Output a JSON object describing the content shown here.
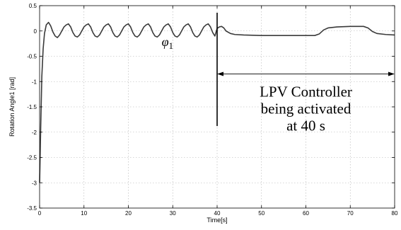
{
  "chart_data": {
    "type": "line",
    "title": "",
    "xlabel": "Time[s]",
    "ylabel": "Rotation Angle1 [rad]",
    "xlim": [
      0,
      80
    ],
    "ylim": [
      -3.5,
      0.5
    ],
    "x_ticks": [
      0,
      10,
      20,
      30,
      40,
      50,
      60,
      70,
      80
    ],
    "y_ticks": [
      -3.5,
      -3,
      -2.5,
      -2,
      -1.5,
      -1,
      -0.5,
      0,
      0.5
    ],
    "x_tick_labels": [
      "0",
      "10",
      "20",
      "30",
      "40",
      "50",
      "60",
      "70",
      "80"
    ],
    "y_tick_labels": [
      "-3.5",
      "-3",
      "-2.5",
      "-2",
      "-1.5",
      "-1",
      "-0.5",
      "0",
      "0.5"
    ],
    "grid": true,
    "series": [
      {
        "name": "",
        "color": "#3a3a3a",
        "x": [
          0,
          0.25,
          0.5,
          0.8,
          1.1,
          1.5,
          2.0,
          2.5,
          3.0,
          3.5,
          4.0,
          4.5,
          5.0,
          5.5,
          6.0,
          6.5,
          7.0,
          7.5,
          8.0,
          8.5,
          9.0,
          9.5,
          10.0,
          10.5,
          11.0,
          11.5,
          12.0,
          12.5,
          13.0,
          13.5,
          14.0,
          14.5,
          15.0,
          15.5,
          16.0,
          16.5,
          17.0,
          17.5,
          18.0,
          18.5,
          19.0,
          19.5,
          20.0,
          20.5,
          21.0,
          21.5,
          22.0,
          22.5,
          23.0,
          23.5,
          24.0,
          24.5,
          25.0,
          25.5,
          26.0,
          26.5,
          27.0,
          27.5,
          28.0,
          28.5,
          29.0,
          29.5,
          30.0,
          30.5,
          31.0,
          31.5,
          32.0,
          32.5,
          33.0,
          33.5,
          34.0,
          34.5,
          35.0,
          35.5,
          36.0,
          36.5,
          37.0,
          37.5,
          38.0,
          38.5,
          39.0,
          39.5,
          40.0,
          40.5,
          41.0,
          41.5,
          42.0,
          43.0,
          44.0,
          46.0,
          50.0,
          55.0,
          60.0,
          62.0,
          63.0,
          64.0,
          65.0,
          67.0,
          70.0,
          73.0,
          74.0,
          75.0,
          76.0,
          78.0,
          80.0
        ],
        "y": [
          -3.0,
          -1.9,
          -0.9,
          -0.35,
          -0.05,
          0.12,
          0.17,
          0.1,
          -0.02,
          -0.1,
          -0.13,
          -0.08,
          0.0,
          0.08,
          0.12,
          0.14,
          0.08,
          -0.03,
          -0.1,
          -0.12,
          -0.08,
          0.0,
          0.08,
          0.12,
          0.14,
          0.08,
          -0.03,
          -0.1,
          -0.12,
          -0.08,
          0.0,
          0.08,
          0.12,
          0.14,
          0.08,
          -0.03,
          -0.1,
          -0.12,
          -0.08,
          0.0,
          0.08,
          0.12,
          0.14,
          0.08,
          -0.03,
          -0.1,
          -0.12,
          -0.08,
          0.0,
          0.08,
          0.12,
          0.14,
          0.08,
          -0.03,
          -0.1,
          -0.12,
          -0.08,
          0.0,
          0.08,
          0.12,
          0.14,
          0.08,
          -0.03,
          -0.1,
          -0.12,
          -0.08,
          0.0,
          0.08,
          0.12,
          0.14,
          0.08,
          -0.03,
          -0.1,
          -0.12,
          -0.08,
          0.0,
          0.08,
          0.12,
          0.14,
          0.08,
          -0.03,
          -0.1,
          0.05,
          0.08,
          0.09,
          0.06,
          0.0,
          -0.05,
          -0.07,
          -0.08,
          -0.09,
          -0.09,
          -0.09,
          -0.09,
          -0.06,
          0.02,
          0.06,
          0.08,
          0.09,
          0.09,
          0.06,
          -0.01,
          -0.05,
          -0.07,
          -0.08
        ]
      }
    ],
    "annotations": {
      "phi_label_main": "φ",
      "phi_label_sub": "1",
      "phi_at": [
        27.5,
        -0.3
      ],
      "activation_time": 40,
      "activation_line_y": [
        -1.88,
        0.36
      ],
      "arrow_y": -0.85,
      "arrow_x": [
        40,
        80
      ],
      "text_lines": [
        "LPV Controller",
        "being activated",
        "at 40 s"
      ],
      "text_center_x": 60
    }
  }
}
